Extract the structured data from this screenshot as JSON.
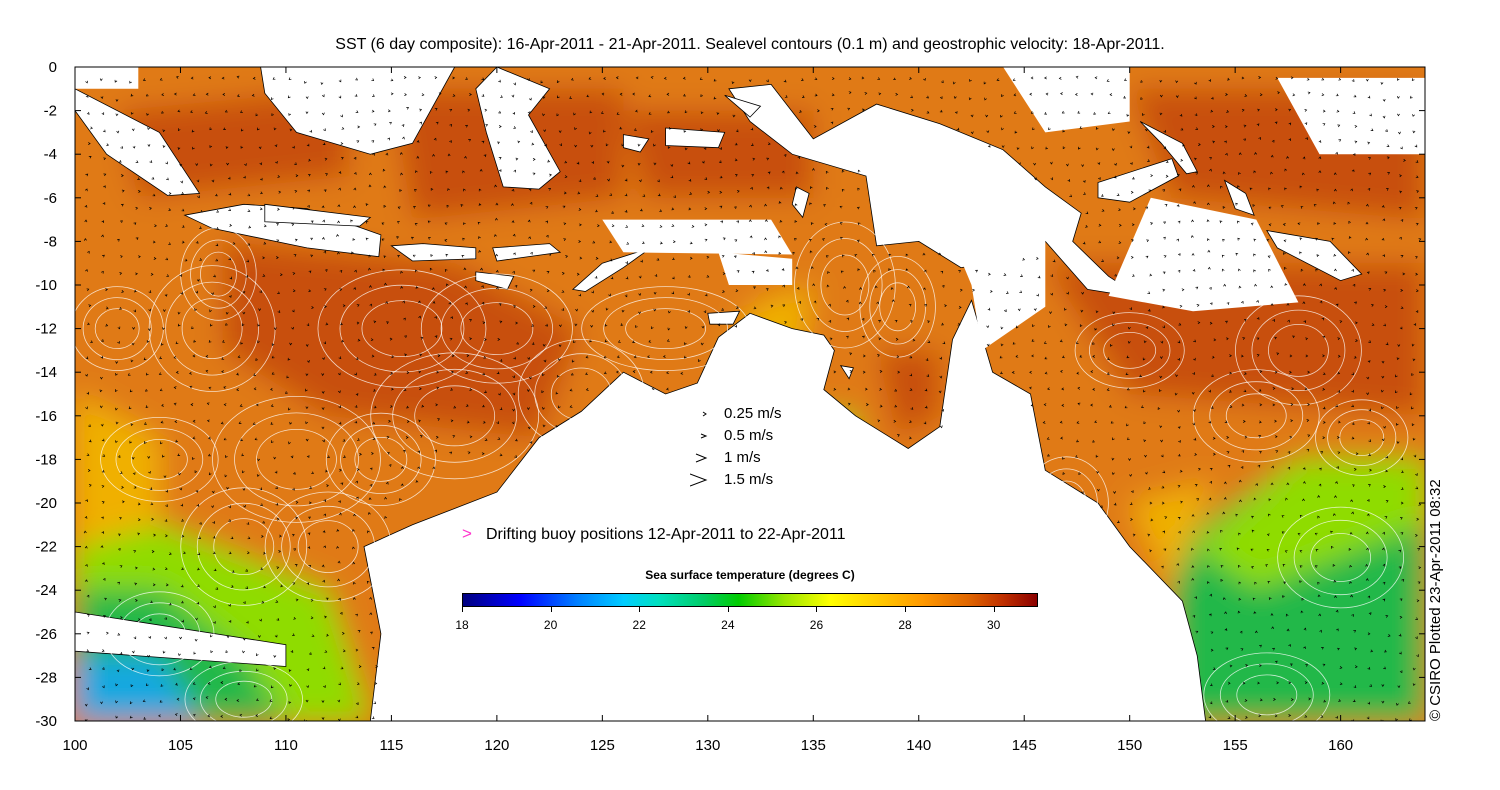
{
  "title": "SST (6 day composite): 16-Apr-2011 - 21-Apr-2011. Sealevel contours (0.1 m) and geostrophic velocity: 18-Apr-2011.",
  "credit": "© CSIRO Plotted 23-Apr-2011 08:32",
  "axes": {
    "x_ticks": [
      "100",
      "105",
      "110",
      "115",
      "120",
      "125",
      "130",
      "135",
      "140",
      "145",
      "150",
      "155",
      "160"
    ],
    "y_ticks": [
      "0",
      "-2",
      "-4",
      "-6",
      "-8",
      "-10",
      "-12",
      "-14",
      "-16",
      "-18",
      "-20",
      "-22",
      "-24",
      "-26",
      "-28",
      "-30"
    ],
    "lon_range": [
      100,
      164
    ],
    "lat_range": [
      -30,
      0
    ]
  },
  "velocity_legend": {
    "items": [
      {
        "label": "0.25 m/s",
        "speed": 0.25
      },
      {
        "label": "0.5 m/s",
        "speed": 0.5
      },
      {
        "label": "1 m/s",
        "speed": 1
      },
      {
        "label": "1.5 m/s",
        "speed": 1.5
      }
    ]
  },
  "buoy_legend": {
    "glyph": ">",
    "label": "Drifting buoy positions 12-Apr-2011 to 22-Apr-2011",
    "color": "#ff33cc"
  },
  "colorbar": {
    "title": "Sea surface temperature (degrees C)",
    "ticks": [
      "18",
      "20",
      "22",
      "24",
      "26",
      "28",
      "30"
    ],
    "range": [
      18,
      31
    ]
  },
  "colors": {
    "hot": "#c8500a",
    "warm": "#e07a14",
    "mid": "#f0b000",
    "cool": "#8fdc00",
    "green": "#22b84a",
    "cold": "#18a8e0",
    "land": "#ffffff",
    "coast": "#000000",
    "contour": "#ffffff",
    "arrow": "#000000"
  }
}
